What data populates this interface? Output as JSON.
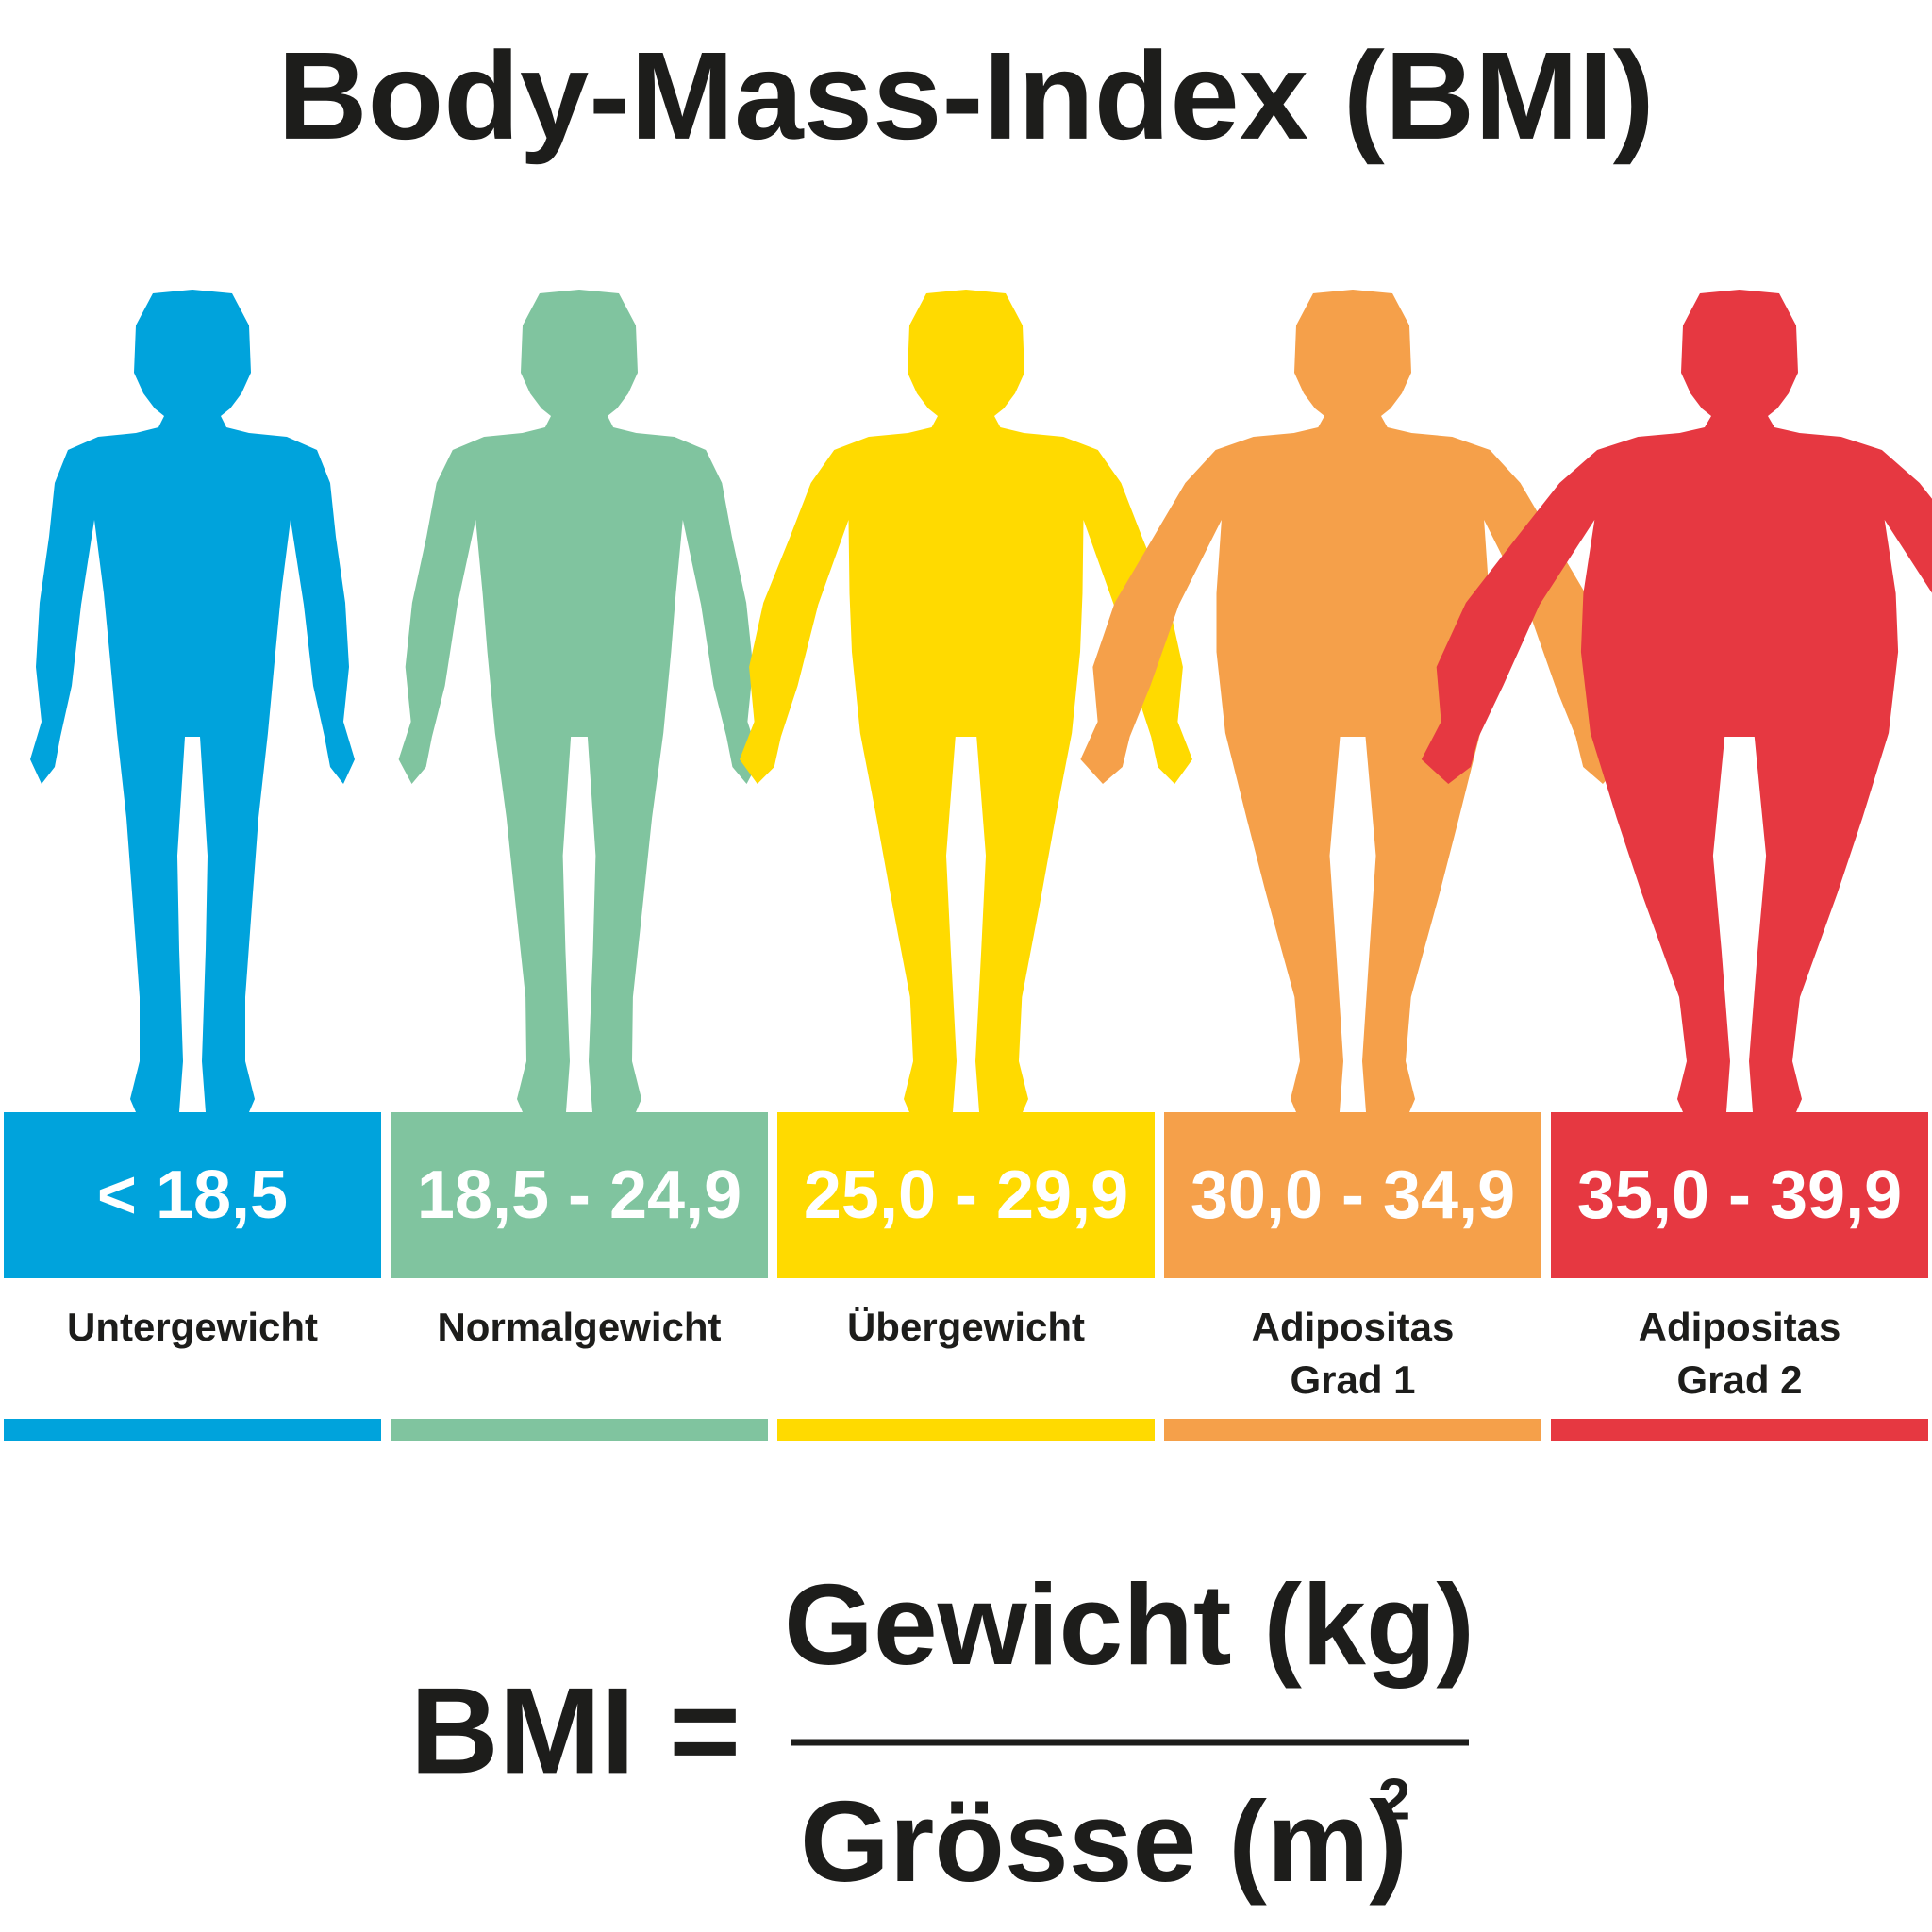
{
  "title": "Body-Mass-Index (BMI)",
  "categories": [
    {
      "range": "< 18,5",
      "label": [
        "Untergewicht"
      ],
      "color": "#00a3dc"
    },
    {
      "range": "18,5 - 24,9",
      "label": [
        "Normalgewicht"
      ],
      "color": "#80c49f"
    },
    {
      "range": "25,0 - 29,9",
      "label": [
        "Übergewicht"
      ],
      "color": "#ffda00"
    },
    {
      "range": "30,0 - 34,9",
      "label": [
        "Adipositas",
        "Grad 1"
      ],
      "color": "#f5a04a"
    },
    {
      "range": "35,0 - 39,9",
      "label": [
        "Adipositas",
        "Grad 2"
      ],
      "color": "#e63841"
    }
  ],
  "formula": {
    "left": "BMI =",
    "numerator": "Gewicht (kg)",
    "denominator": "Grösse (m)",
    "exponent": "2"
  }
}
